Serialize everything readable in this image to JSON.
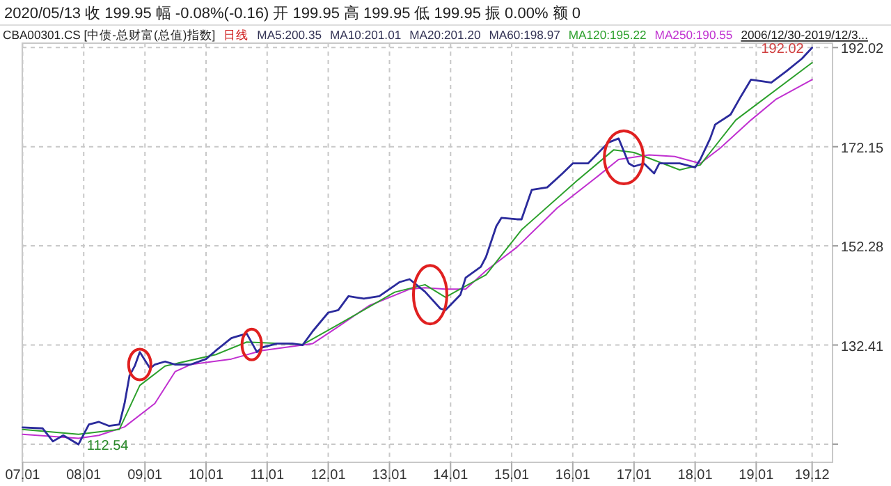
{
  "chart_data": {
    "type": "line",
    "title": "2020/05/13 收 199.95 幅 -0.08%(-0.16) 开 199.95 高 199.95 低 199.95 振 0.00% 额 0",
    "subtitle": "CBA00301.CS [中债-总财富(总值)指数]",
    "annotations": [
      "日线",
      "MA5:200.35",
      "MA10:201.01",
      "MA20:201.20",
      "MA60:198.97",
      "2006/12/30-2019/12/3...",
      {
        "text": "112.54",
        "x": "2007-12",
        "y": 112.54
      },
      {
        "text": "192.02",
        "x": "2019-12",
        "y": 192.02
      }
    ],
    "xlim": [
      "2006-12-30",
      "2020-04-01"
    ],
    "xticks": [
      {
        "value": "2007-01-01",
        "label": "07.01"
      },
      {
        "value": "2008-01-01",
        "label": "08.01"
      },
      {
        "value": "2009-01-01",
        "label": "09.01"
      },
      {
        "value": "2010-01-01",
        "label": "10.01"
      },
      {
        "value": "2011-01-01",
        "label": "11.01"
      },
      {
        "value": "2012-01-01",
        "label": "12.01"
      },
      {
        "value": "2013-01-01",
        "label": "13.01"
      },
      {
        "value": "2014-01-01",
        "label": "14.01"
      },
      {
        "value": "2015-01-01",
        "label": "15.01"
      },
      {
        "value": "2016-01-01",
        "label": "16.01"
      },
      {
        "value": "2017-01-01",
        "label": "17.01"
      },
      {
        "value": "2018-01-01",
        "label": "18.01"
      },
      {
        "value": "2019-01-01",
        "label": "19.01"
      },
      {
        "value": "2019-12-01",
        "label": "19.12"
      }
    ],
    "ylim": [
      108.9,
      192.9
    ],
    "yticks": [
      {
        "value": 112.54,
        "label": null
      },
      132.41,
      152.28,
      172.15,
      192.02
    ],
    "grid": true,
    "series": [
      {
        "color": "#2b2b9c",
        "x": [
          "2007-01",
          "2007-05",
          "2007-07",
          "2007-09",
          "2007-12",
          "2008-01",
          "2008-02",
          "2008-04",
          "2008-06",
          "2008-08",
          "2008-09",
          "2008-10",
          "2008-11",
          "2008-12",
          "2009-02",
          "2009-03",
          "2009-05",
          "2009-07",
          "2009-10",
          "2010-01",
          "2010-03",
          "2010-06",
          "2010-07",
          "2010-09",
          "2010-11",
          "2010-12",
          "2011-03",
          "2011-06",
          "2011-08",
          "2011-10",
          "2012-01",
          "2012-03",
          "2012-05",
          "2012-08",
          "2012-11",
          "2013-03",
          "2013-05",
          "2013-08",
          "2013-11",
          "2013-12",
          "2014-03",
          "2014-04",
          "2014-07",
          "2014-08",
          "2014-10",
          "2014-11",
          "2015-02",
          "2015-03",
          "2015-05",
          "2015-08",
          "2015-11",
          "2016-01",
          "2016-04",
          "2016-08",
          "2016-10",
          "2016-12",
          "2017-01",
          "2017-03",
          "2017-05",
          "2017-06",
          "2017-10",
          "2018-01",
          "2018-02",
          "2018-04",
          "2018-05",
          "2018-08",
          "2018-10",
          "2018-12",
          "2019-04",
          "2019-07",
          "2019-10",
          "2019-12"
        ],
        "values": [
          115.9,
          115.7,
          113.1,
          114.3,
          112.5,
          114.5,
          116.5,
          117.0,
          116.2,
          116.5,
          120.7,
          126.3,
          128.2,
          131.0,
          127.7,
          128.5,
          129.1,
          128.5,
          128.5,
          129.6,
          131.3,
          133.8,
          134.1,
          134.7,
          131.0,
          131.9,
          132.7,
          132.7,
          132.4,
          135.2,
          138.9,
          139.4,
          142.2,
          141.7,
          142.2,
          145.0,
          145.6,
          143.1,
          139.7,
          139.4,
          142.5,
          145.9,
          148.1,
          150.1,
          156.2,
          157.9,
          157.6,
          157.6,
          163.5,
          164.0,
          166.8,
          168.8,
          168.8,
          173.0,
          173.8,
          168.8,
          168.2,
          168.8,
          166.8,
          168.8,
          168.8,
          168.0,
          169.6,
          173.8,
          176.6,
          178.6,
          182.2,
          185.6,
          185.0,
          187.3,
          189.8,
          192.0
        ]
      },
      {
        "name": "MA120:195.22",
        "color": "#2ca02c",
        "x": [
          "2007-01",
          "2007-12",
          "2008-08",
          "2008-12",
          "2009-05",
          "2010-03",
          "2010-09",
          "2011-08",
          "2012-03",
          "2013-02",
          "2013-08",
          "2013-12",
          "2014-08",
          "2015-03",
          "2016-02",
          "2016-09",
          "2017-01",
          "2017-10",
          "2018-02",
          "2018-09",
          "2019-12"
        ],
        "values": [
          115.5,
          114.5,
          115.5,
          124.3,
          128.2,
          130.5,
          133.0,
          132.5,
          136.5,
          143.0,
          144.5,
          142.0,
          146.5,
          155.5,
          165.5,
          171.5,
          171.0,
          167.5,
          168.5,
          177.5,
          189.0
        ]
      },
      {
        "name": "MA250:190.55",
        "color": "#c030d0",
        "x": [
          "2007-01",
          "2007-12",
          "2008-04",
          "2008-09",
          "2009-03",
          "2009-07",
          "2009-10",
          "2010-06",
          "2010-12",
          "2011-10",
          "2012-03",
          "2012-09",
          "2013-05",
          "2013-08",
          "2013-12",
          "2014-04",
          "2014-08",
          "2015-02",
          "2015-10",
          "2016-06",
          "2016-10",
          "2017-04",
          "2017-09",
          "2018-02",
          "2018-06",
          "2018-12",
          "2019-05",
          "2019-12"
        ],
        "values": [
          114.5,
          113.7,
          114.3,
          116.0,
          120.7,
          127.1,
          128.5,
          129.6,
          131.3,
          132.7,
          136.1,
          140.3,
          143.6,
          143.9,
          143.6,
          143.6,
          147.3,
          152.0,
          159.9,
          166.3,
          169.6,
          170.5,
          170.2,
          168.8,
          171.9,
          177.5,
          181.7,
          185.6
        ]
      }
    ]
  }
}
